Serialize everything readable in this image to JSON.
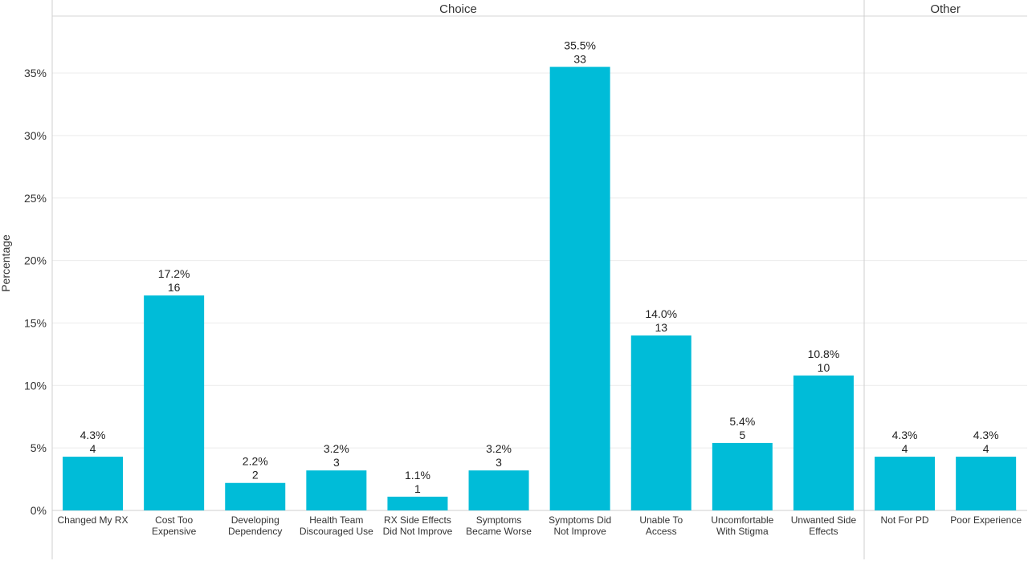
{
  "chart_data": {
    "type": "bar",
    "ylabel": "Percentage",
    "ylim": [
      0,
      39
    ],
    "yticks": [
      0,
      5,
      10,
      15,
      20,
      25,
      30,
      35
    ],
    "ytick_labels": [
      "0%",
      "5%",
      "10%",
      "15%",
      "20%",
      "25%",
      "30%",
      "35%"
    ],
    "grid": true,
    "bar_color": "#00BCD8",
    "groups": [
      {
        "name": "Choice",
        "categories": [
          {
            "label": [
              "Changed My RX"
            ],
            "value": 4.3,
            "pct_label": "4.3%",
            "count": "4"
          },
          {
            "label": [
              "Cost Too",
              "Expensive"
            ],
            "value": 17.2,
            "pct_label": "17.2%",
            "count": "16"
          },
          {
            "label": [
              "Developing",
              "Dependency"
            ],
            "value": 2.2,
            "pct_label": "2.2%",
            "count": "2"
          },
          {
            "label": [
              "Health Team",
              "Discouraged Use"
            ],
            "value": 3.2,
            "pct_label": "3.2%",
            "count": "3"
          },
          {
            "label": [
              "RX Side Effects",
              "Did Not Improve"
            ],
            "value": 1.1,
            "pct_label": "1.1%",
            "count": "1"
          },
          {
            "label": [
              "Symptoms",
              "Became Worse"
            ],
            "value": 3.2,
            "pct_label": "3.2%",
            "count": "3"
          },
          {
            "label": [
              "Symptoms Did",
              "Not Improve"
            ],
            "value": 35.5,
            "pct_label": "35.5%",
            "count": "33"
          },
          {
            "label": [
              "Unable To",
              "Access"
            ],
            "value": 14.0,
            "pct_label": "14.0%",
            "count": "13"
          },
          {
            "label": [
              "Uncomfortable",
              "With Stigma"
            ],
            "value": 5.4,
            "pct_label": "5.4%",
            "count": "5"
          },
          {
            "label": [
              "Unwanted Side",
              "Effects"
            ],
            "value": 10.8,
            "pct_label": "10.8%",
            "count": "10"
          }
        ]
      },
      {
        "name": "Other",
        "categories": [
          {
            "label": [
              "Not For PD"
            ],
            "value": 4.3,
            "pct_label": "4.3%",
            "count": "4"
          },
          {
            "label": [
              "Poor Experience"
            ],
            "value": 4.3,
            "pct_label": "4.3%",
            "count": "4"
          }
        ]
      }
    ]
  }
}
